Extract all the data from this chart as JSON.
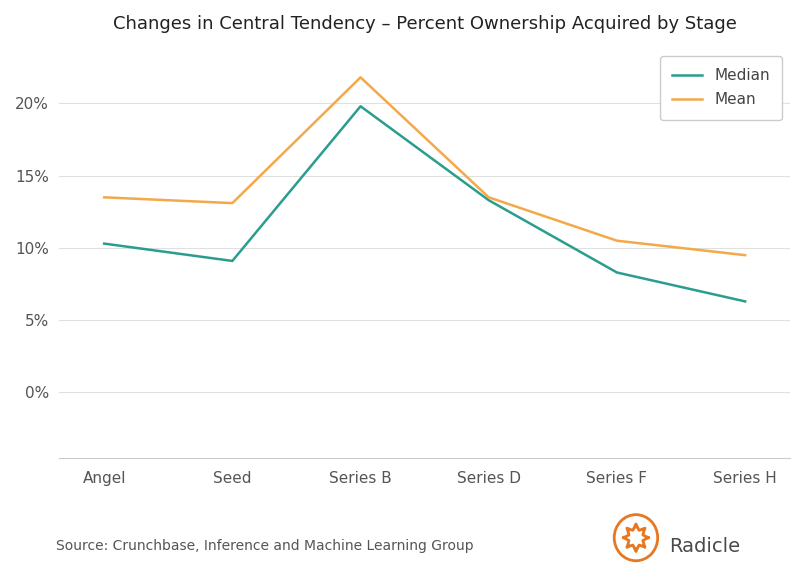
{
  "title": "Changes in Central Tendency – Percent Ownership Acquired by Stage",
  "xtick_labels": [
    "Angel",
    "Seed",
    "Series B",
    "Series D",
    "Series F",
    "Series H"
  ],
  "median": [
    0.103,
    0.091,
    0.198,
    0.133,
    0.083,
    0.063
  ],
  "mean": [
    0.135,
    0.131,
    0.218,
    0.135,
    0.105,
    0.095
  ],
  "median_color": "#2a9d8f",
  "mean_color": "#f4a84a",
  "ylim": [
    -0.045,
    0.238
  ],
  "yticks": [
    0.0,
    0.05,
    0.1,
    0.15,
    0.2
  ],
  "source_text": "Source: Crunchbase, Inference and Machine Learning Group",
  "legend_labels": [
    "Median",
    "Mean"
  ],
  "background_color": "#ffffff",
  "title_fontsize": 13,
  "tick_fontsize": 11,
  "source_fontsize": 10,
  "legend_fontsize": 11,
  "line_width": 1.8,
  "radicle_text": "Radicle",
  "radicle_color": "#4a4a4a",
  "radicle_orange": "#e87722"
}
